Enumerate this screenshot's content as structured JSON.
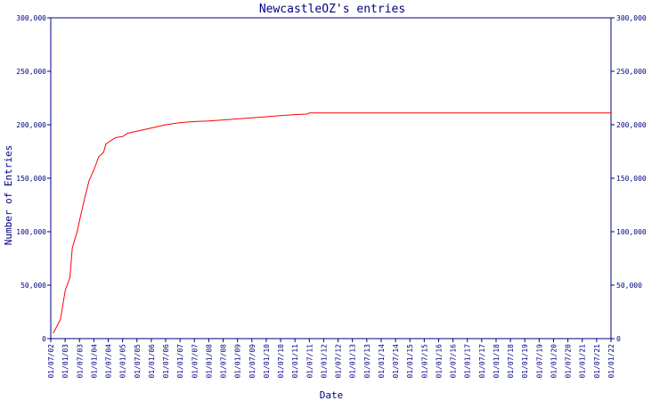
{
  "colors": {
    "background": "#ffffff",
    "axis": "#000080",
    "text": "#000080",
    "series": "#ff0000"
  },
  "chart_data": {
    "type": "line",
    "title": "NewcastleOZ's entries",
    "xlabel": "Date",
    "ylabel": "Number of Entries",
    "ylim": [
      0,
      300000
    ],
    "yticks": [
      0,
      50000,
      100000,
      150000,
      200000,
      250000,
      300000
    ],
    "ytick_labels": [
      "0",
      "50,000",
      "100,000",
      "150,000",
      "200,000",
      "250,000",
      "300,000"
    ],
    "right_axis": true,
    "grid": false,
    "legend": "none",
    "xlim": [
      "2002-07-01",
      "2022-01-01"
    ],
    "xtick_labels": [
      "01/07/02",
      "01/01/03",
      "01/07/03",
      "01/01/04",
      "01/07/04",
      "01/01/05",
      "01/07/05",
      "01/01/06",
      "01/07/06",
      "01/01/07",
      "01/07/07",
      "01/01/08",
      "01/07/08",
      "01/01/09",
      "01/07/09",
      "01/01/10",
      "01/07/10",
      "01/01/11",
      "01/07/11",
      "01/01/12",
      "01/07/12",
      "01/01/13",
      "01/07/13",
      "01/01/14",
      "01/07/14",
      "01/01/15",
      "01/07/15",
      "01/01/16",
      "01/07/16",
      "01/01/17",
      "01/07/17",
      "01/01/18",
      "01/07/18",
      "01/01/19",
      "01/07/19",
      "01/01/20",
      "01/07/20",
      "01/01/21",
      "01/07/21",
      "01/01/22"
    ],
    "series": [
      {
        "points": [
          [
            "2002-08-01",
            5000
          ],
          [
            "2002-11-01",
            18000
          ],
          [
            "2003-01-01",
            45000
          ],
          [
            "2003-03-01",
            57000
          ],
          [
            "2003-04-01",
            85000
          ],
          [
            "2003-06-01",
            100000
          ],
          [
            "2003-07-01",
            110000
          ],
          [
            "2003-09-01",
            130000
          ],
          [
            "2003-11-01",
            148000
          ],
          [
            "2004-01-01",
            158000
          ],
          [
            "2004-03-01",
            170000
          ],
          [
            "2004-05-01",
            174000
          ],
          [
            "2004-06-01",
            182000
          ],
          [
            "2004-08-01",
            185000
          ],
          [
            "2004-10-01",
            188000
          ],
          [
            "2005-01-01",
            189000
          ],
          [
            "2005-03-01",
            192000
          ],
          [
            "2005-07-01",
            194000
          ],
          [
            "2006-01-01",
            197000
          ],
          [
            "2006-07-01",
            200000
          ],
          [
            "2007-01-01",
            202000
          ],
          [
            "2007-07-01",
            203000
          ],
          [
            "2008-01-01",
            203500
          ],
          [
            "2008-07-01",
            204500
          ],
          [
            "2009-01-01",
            205500
          ],
          [
            "2009-07-01",
            206500
          ],
          [
            "2010-01-01",
            207500
          ],
          [
            "2010-07-01",
            208500
          ],
          [
            "2011-01-01",
            209500
          ],
          [
            "2011-06-01",
            210000
          ],
          [
            "2011-07-01",
            211000
          ],
          [
            "2012-01-01",
            211000
          ],
          [
            "2016-01-01",
            211000
          ],
          [
            "2022-01-01",
            211000
          ]
        ]
      }
    ]
  }
}
